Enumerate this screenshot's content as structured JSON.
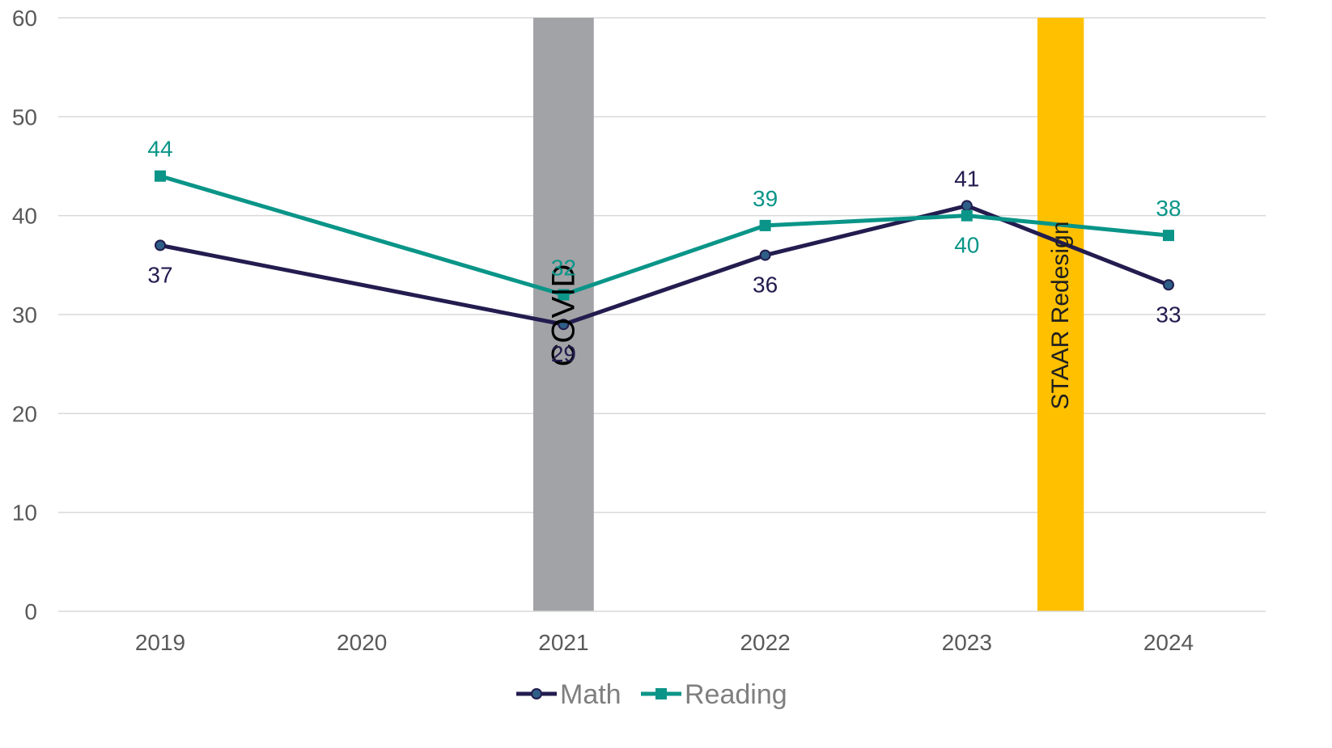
{
  "chart_data": {
    "type": "line",
    "categories": [
      "2019",
      "2020",
      "2021",
      "2022",
      "2023",
      "2024"
    ],
    "ylim": [
      0,
      60
    ],
    "yticks": [
      "0",
      "10",
      "20",
      "30",
      "40",
      "50",
      "60"
    ],
    "grid": "horizontal",
    "legend_position": "bottom-center",
    "series": [
      {
        "name": "Math",
        "color": "#231c4f",
        "marker": "circle",
        "points": [
          {
            "x": "2019",
            "y": 37,
            "label": "37",
            "label_side": "below"
          },
          {
            "x": "2021",
            "y": 29,
            "label": "29",
            "label_side": "below"
          },
          {
            "x": "2022",
            "y": 36,
            "label": "36",
            "label_side": "below"
          },
          {
            "x": "2023",
            "y": 41,
            "label": "41",
            "label_side": "above"
          },
          {
            "x": "2024",
            "y": 33,
            "label": "33",
            "label_side": "below"
          }
        ]
      },
      {
        "name": "Reading",
        "color": "#0a9588",
        "marker": "square",
        "points": [
          {
            "x": "2019",
            "y": 44,
            "label": "44",
            "label_side": "above"
          },
          {
            "x": "2021",
            "y": 32,
            "label": "32",
            "label_side": "above"
          },
          {
            "x": "2022",
            "y": 39,
            "label": "39",
            "label_side": "above"
          },
          {
            "x": "2023",
            "y": 40,
            "label": "40",
            "label_side": "below"
          },
          {
            "x": "2024",
            "y": 38,
            "label": "38",
            "label_side": "above"
          }
        ]
      }
    ],
    "bands": [
      {
        "label": "COVID",
        "from": 1.85,
        "to": 2.15,
        "color": "#a2a3a6",
        "text_color": "#000000"
      },
      {
        "label": "STAAR Redesign",
        "from": 4.35,
        "to": 4.58,
        "color": "#ffc000",
        "text_color": "#1f1f1f"
      }
    ]
  }
}
